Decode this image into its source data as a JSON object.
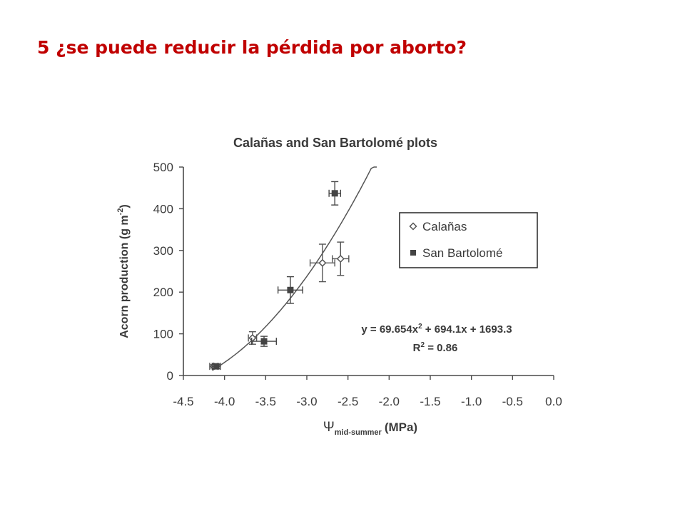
{
  "slide": {
    "title": "5 ¿se puede reducir la pérdida por aborto?"
  },
  "chart_data": {
    "type": "scatter",
    "title": "Calañas and San Bartolomé plots",
    "xlabel": "Ψ",
    "xlabel_subscript": "mid-summer",
    "xlabel_unit": "(MPa)",
    "ylabel": "Acorn production (g m",
    "ylabel_exponent": "-2",
    "ylabel_close": ")",
    "xlim": [
      -4.5,
      0.0
    ],
    "ylim": [
      0,
      500
    ],
    "x_ticks": [
      "-4.5",
      "-4.0",
      "-3.5",
      "-3.0",
      "-2.5",
      "-2.0",
      "-1.5",
      "-1.0",
      "-0.5",
      "0.0"
    ],
    "y_ticks": [
      "0",
      "100",
      "200",
      "300",
      "400",
      "500"
    ],
    "grid": false,
    "legend_position": "right",
    "series": [
      {
        "name": "Calañas",
        "marker": "open-diamond",
        "color": "#555555",
        "points": [
          {
            "x": -4.13,
            "y": 22,
            "xerr": 0.05,
            "yerr": 4
          },
          {
            "x": -3.66,
            "y": 90,
            "xerr": 0.05,
            "yerr": 15
          },
          {
            "x": -2.81,
            "y": 270,
            "xerr": 0.15,
            "yerr": 45
          },
          {
            "x": -2.59,
            "y": 280,
            "xerr": 0.1,
            "yerr": 40
          }
        ]
      },
      {
        "name": "San Bartolomé",
        "marker": "filled-square",
        "color": "#444444",
        "points": [
          {
            "x": -4.1,
            "y": 22,
            "xerr": 0.05,
            "yerr": 5
          },
          {
            "x": -3.52,
            "y": 82,
            "xerr": 0.15,
            "yerr": 12
          },
          {
            "x": -3.2,
            "y": 205,
            "xerr": 0.15,
            "yerr": 32
          },
          {
            "x": -2.66,
            "y": 437,
            "xerr": 0.07,
            "yerr": 28
          }
        ]
      }
    ],
    "fit": {
      "a": 69.654,
      "b": 694.1,
      "c": 1693.3,
      "x_range": [
        -4.15,
        -2.15
      ],
      "equation_label": "y = 69.654x",
      "equation_exponent": "2",
      "equation_rest": " + 694.1x + 1693.3",
      "r2_label": "R",
      "r2_exponent": "2",
      "r2_value": " = 0.86"
    },
    "colors": {
      "axis": "#4a4a4a",
      "text": "#3a3a3a",
      "fit_line": "#555555"
    }
  }
}
